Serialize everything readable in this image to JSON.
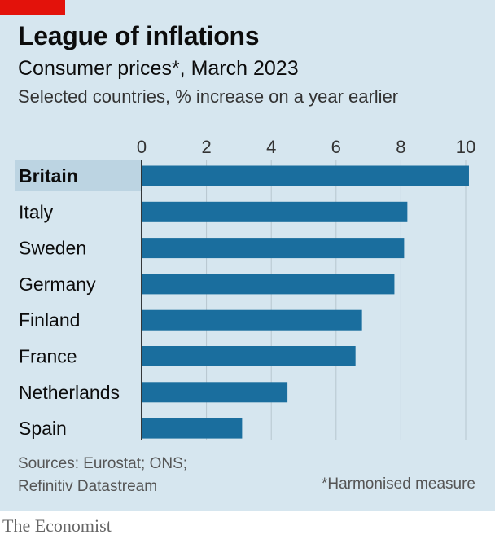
{
  "header": {
    "title": "League of inflations",
    "subtitle": "Consumer prices*, March 2023",
    "description": "Selected countries, % increase on a year earlier"
  },
  "footer": {
    "source_line1": "Sources: Eurostat; ONS;",
    "source_line2": "Refinitiv Datastream",
    "footnote": "*Harmonised measure",
    "brand": "The Economist"
  },
  "colors": {
    "bar": "#1a6e9e",
    "highlight_band": "#bcd4e2",
    "brand_red": "#e3120b",
    "background": "#d6e6ef"
  },
  "chart_data": {
    "type": "bar",
    "orientation": "horizontal",
    "categories": [
      "Britain",
      "Italy",
      "Sweden",
      "Germany",
      "Finland",
      "France",
      "Netherlands",
      "Spain"
    ],
    "values": [
      10.1,
      8.2,
      8.1,
      7.8,
      6.8,
      6.6,
      4.5,
      3.1
    ],
    "highlighted": "Britain",
    "xlim": [
      0,
      10
    ],
    "xticks": [
      0,
      2,
      4,
      6,
      8,
      10
    ],
    "xtick_labels": [
      "0",
      "2",
      "4",
      "6",
      "8",
      "10"
    ],
    "xaxis_position": "top",
    "grid": true
  }
}
